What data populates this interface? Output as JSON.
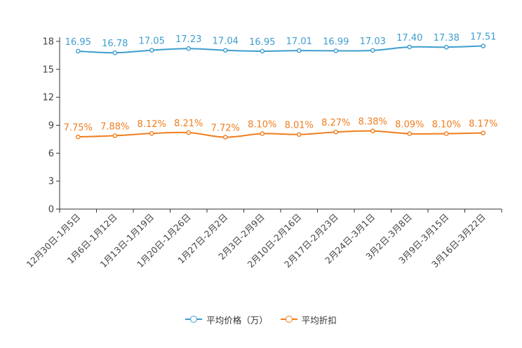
{
  "chart_data": {
    "type": "line",
    "categories": [
      "12月30日-1月5日",
      "1月6日-1月12日",
      "1月13日-1月19日",
      "1月20日-1月26日",
      "1月27日-2月2日",
      "2月3日-2月9日",
      "2月10日-2月16日",
      "2月17日-2月23日",
      "2月24日-3月1日",
      "3月2日-3月8日",
      "3月9日-3月15日",
      "3月16日-3月22日"
    ],
    "ylim": [
      0,
      18
    ],
    "yticks": [
      0,
      3,
      6,
      9,
      12,
      15,
      18
    ],
    "series": [
      {
        "name": "平均价格（万）",
        "color": "#3d9ecf",
        "values": [
          16.95,
          16.78,
          17.05,
          17.23,
          17.04,
          16.95,
          17.01,
          16.99,
          17.03,
          17.4,
          17.38,
          17.51
        ],
        "labels": [
          "16.95",
          "16.78",
          "17.05",
          "17.23",
          "17.04",
          "16.95",
          "17.01",
          "16.99",
          "17.03",
          "17.40",
          "17.38",
          "17.51"
        ]
      },
      {
        "name": "平均折扣",
        "color": "#f07d1e",
        "values": [
          7.75,
          7.88,
          8.12,
          8.21,
          7.72,
          8.1,
          8.01,
          8.27,
          8.38,
          8.09,
          8.1,
          8.17
        ],
        "labels": [
          "7.75%",
          "7.88%",
          "8.12%",
          "8.21%",
          "7.72%",
          "8.10%",
          "8.01%",
          "8.27%",
          "8.38%",
          "8.09%",
          "8.10%",
          "8.17%"
        ]
      }
    ],
    "title": "",
    "xlabel": "",
    "ylabel": "",
    "legend": "bottom"
  }
}
